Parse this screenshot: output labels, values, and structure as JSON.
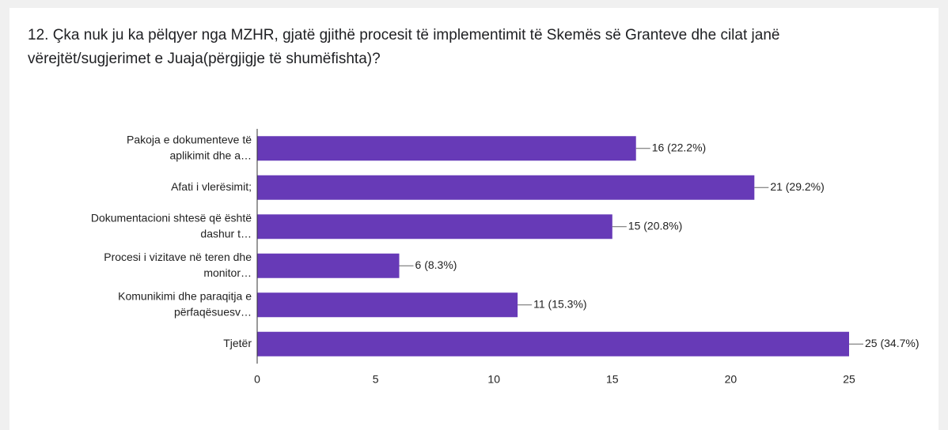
{
  "chart_data": {
    "type": "hbar",
    "title": "12. Çka nuk ju ka pëlqyer nga MZHR, gjatë gjithë procesit të implementimit të Skemës së Granteve dhe cilat janë vërejtët/sugjerimet e Juaja(përgjigje të shumëfishta)?",
    "categories": [
      [
        "Pakoja e dokumenteve të",
        "aplikimit dhe a…"
      ],
      [
        "Afati i vlerësimit;"
      ],
      [
        "Dokumentacioni shtesë që është",
        "dashur t…"
      ],
      [
        "Procesi i vizitave në teren dhe",
        "monitor…"
      ],
      [
        "Komunikimi dhe paraqitja e",
        "përfaqësuesv…"
      ],
      [
        "Tjetër"
      ]
    ],
    "values": [
      16,
      21,
      15,
      6,
      11,
      25
    ],
    "value_labels": [
      "16 (22.2%)",
      "21 (29.2%)",
      "15 (20.8%)",
      "6 (8.3%)",
      "11 (15.3%)",
      "25 (34.7%)"
    ],
    "color": "#673ab7",
    "xlim": [
      0,
      25
    ],
    "xticks": [
      0,
      5,
      10,
      15,
      20,
      25
    ],
    "grid": false
  }
}
